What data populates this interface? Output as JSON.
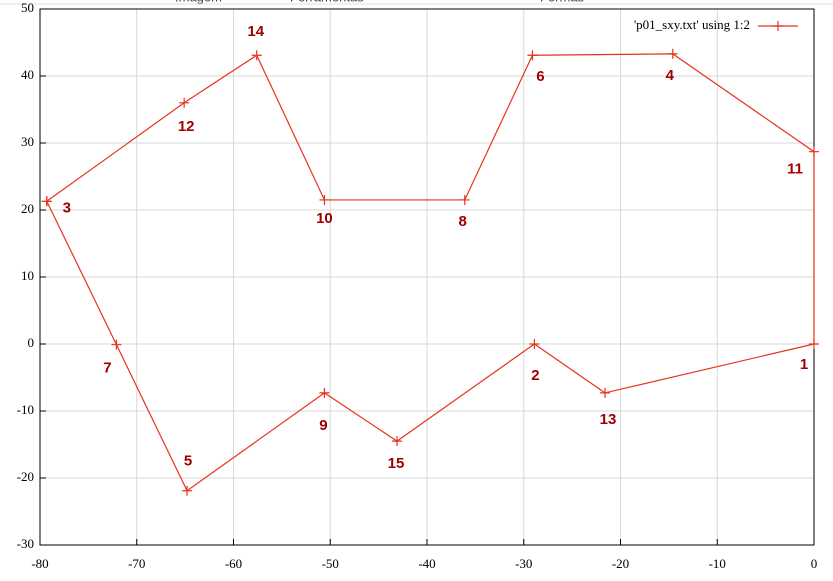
{
  "toolbar": [
    "Imagem",
    "Ferramentas",
    "Formas"
  ],
  "chart_data": {
    "type": "line",
    "series": [
      {
        "name": "'p01_sxy.txt' using 1:2",
        "color": "#e8321c",
        "x": [
          -79.3,
          -65.1,
          -57.6,
          -50.6,
          -36.1,
          -29.1,
          -14.6,
          0,
          0,
          -21.6,
          -28.9,
          -43.1,
          -50.6,
          -64.8,
          -72.1,
          -79.3
        ],
        "values": [
          21.3,
          36.0,
          43.1,
          21.5,
          21.5,
          43.1,
          43.3,
          28.7,
          0,
          -7.3,
          0,
          -14.5,
          -7.3,
          -21.9,
          -0.1,
          21.3
        ]
      }
    ],
    "point_labels": [
      3,
      12,
      14,
      10,
      8,
      6,
      4,
      11,
      1,
      13,
      2,
      15,
      9,
      5,
      7
    ],
    "label_color": "#a00000",
    "xlim": [
      -80,
      0
    ],
    "xticks": [
      -80,
      -70,
      -60,
      -50,
      -40,
      -30,
      -20,
      -10,
      0
    ],
    "ylim": [
      -30,
      50
    ],
    "yticks": [
      -30,
      -20,
      -10,
      0,
      10,
      20,
      30,
      40,
      50
    ],
    "grid": true,
    "legend": "top-right"
  }
}
